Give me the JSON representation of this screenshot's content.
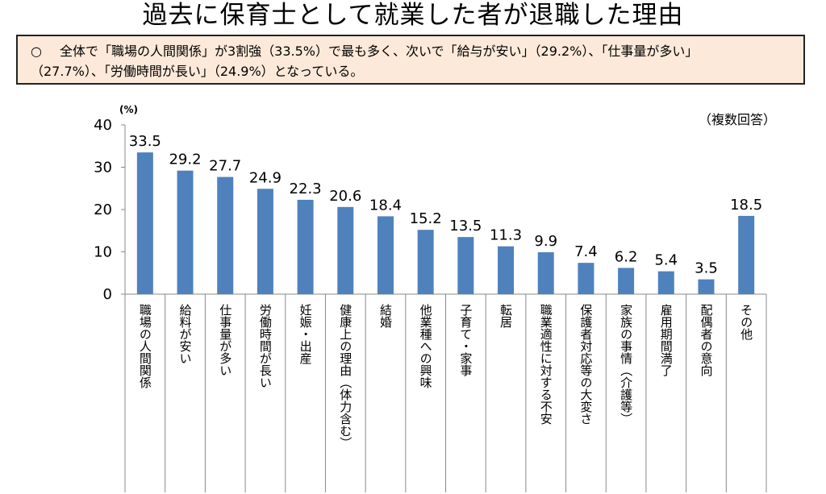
{
  "title": "過去に保育士として就業した者が退職した理由",
  "summary": {
    "bullet": "○",
    "line1": "全体で「職場の人間関係」が3割強（33.5%）で最も多く、次いで「給与が安い」（29.2%）、「仕事量が多い」",
    "line2": "（27.7%）、「労働時間が長い」（24.9%）となっている。"
  },
  "note": "（複数回答）",
  "chart_data": {
    "type": "bar",
    "ylabel": "(%)",
    "ylim": [
      0,
      40
    ],
    "yticks": [
      0,
      10,
      20,
      30,
      40
    ],
    "grid": false,
    "bar_color": "#4f81bd",
    "categories": [
      "職場の人間関係",
      "給料が安い",
      "仕事量が多い",
      "労働時間が長い",
      "妊娠・出産",
      "健康上の理由（体力含む）",
      "結婚",
      "他業種への興味",
      "子育て・家事",
      "転居",
      "職業適性に対する不安",
      "保護者対応等の大変さ",
      "家族の事情（介護等）",
      "雇用期間満了",
      "配偶者の意向",
      "その他"
    ],
    "values": [
      33.5,
      29.2,
      27.7,
      24.9,
      22.3,
      20.6,
      18.4,
      15.2,
      13.5,
      11.3,
      9.9,
      7.4,
      6.2,
      5.4,
      3.5,
      18.5
    ],
    "value_labels": [
      "33.5",
      "29.2",
      "27.7",
      "24.9",
      "22.3",
      "20.6",
      "18.4",
      "15.2",
      "13.5",
      "11.3",
      "9.9",
      "7.4",
      "6.2",
      "5.4",
      "3.5",
      "18.5"
    ]
  }
}
